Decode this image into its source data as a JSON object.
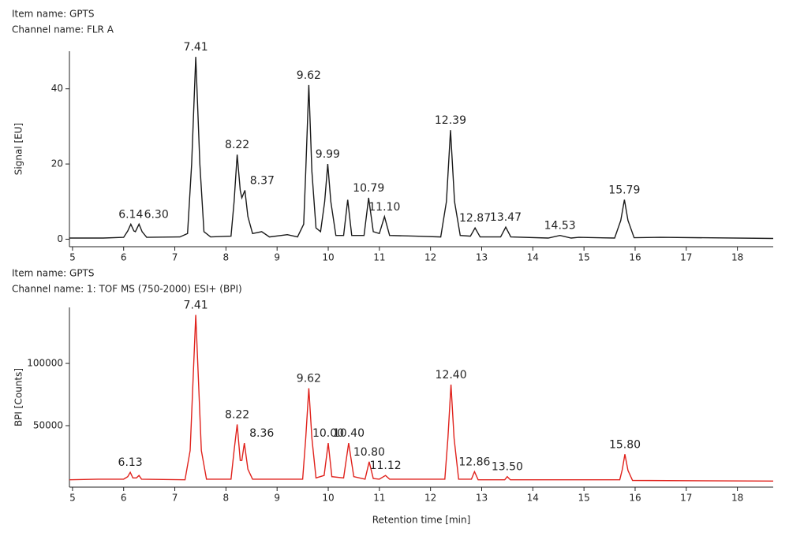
{
  "chart_data": [
    {
      "type": "line",
      "header": [
        "Item name: GPTS",
        "Channel name: FLR A"
      ],
      "y_label": "Signal [EU]",
      "xlim": [
        4.94,
        18.7
      ],
      "ylim": [
        -2,
        50
      ],
      "xticks": [
        5,
        6,
        7,
        8,
        9,
        10,
        11,
        12,
        13,
        14,
        15,
        16,
        17,
        18
      ],
      "yticks": [
        0,
        20,
        40
      ],
      "x": [
        4.94,
        5.6,
        6.0,
        6.08,
        6.14,
        6.2,
        6.23,
        6.3,
        6.36,
        6.45,
        7.1,
        7.25,
        7.33,
        7.41,
        7.49,
        7.57,
        7.7,
        8.1,
        8.16,
        8.22,
        8.28,
        8.31,
        8.37,
        8.43,
        8.52,
        8.7,
        8.85,
        9.2,
        9.4,
        9.52,
        9.56,
        9.62,
        9.68,
        9.76,
        9.85,
        9.93,
        9.99,
        10.05,
        10.15,
        10.3,
        10.38,
        10.46,
        10.7,
        10.79,
        10.88,
        11.0,
        11.1,
        11.2,
        11.7,
        12.2,
        12.31,
        12.39,
        12.47,
        12.58,
        12.78,
        12.87,
        12.97,
        13.37,
        13.47,
        13.57,
        14.3,
        14.53,
        14.75,
        14.9,
        15.6,
        15.72,
        15.79,
        15.86,
        15.98,
        16.5,
        18.7
      ],
      "series": [
        {
          "color": "#1a1a1a",
          "values": [
            0.3,
            0.3,
            0.5,
            2.2,
            4,
            2.2,
            2,
            4,
            2,
            0.5,
            0.6,
            1.5,
            20,
            48.5,
            20,
            2,
            0.6,
            0.8,
            10,
            22.5,
            13,
            11,
            13,
            6,
            1.5,
            2,
            0.6,
            1.2,
            0.6,
            4,
            18,
            41,
            18,
            3,
            2,
            10,
            20,
            10,
            1,
            1,
            10.5,
            1,
            1,
            11,
            2,
            1.5,
            6,
            1,
            0.8,
            0.6,
            10,
            29,
            10,
            1,
            0.8,
            3,
            0.6,
            0.6,
            3.2,
            0.6,
            0.3,
            1,
            0.3,
            0.5,
            0.3,
            5,
            10.5,
            5,
            0.4,
            0.5,
            0.2
          ]
        }
      ],
      "annotations": [
        {
          "x": 6.14,
          "label": "6.14"
        },
        {
          "x": 6.3,
          "label": "6.30"
        },
        {
          "x": 7.41,
          "label": "7.41"
        },
        {
          "x": 8.22,
          "label": "8.22"
        },
        {
          "x": 8.37,
          "label": "8.37"
        },
        {
          "x": 9.62,
          "label": "9.62"
        },
        {
          "x": 9.99,
          "label": "9.99"
        },
        {
          "x": 10.79,
          "label": "10.79"
        },
        {
          "x": 11.1,
          "label": "11.10"
        },
        {
          "x": 12.39,
          "label": "12.39"
        },
        {
          "x": 12.87,
          "label": "12.87"
        },
        {
          "x": 13.47,
          "label": "13.47"
        },
        {
          "x": 14.53,
          "label": "14.53"
        },
        {
          "x": 15.79,
          "label": "15.79"
        }
      ]
    },
    {
      "type": "line",
      "header": [
        "Item name: GPTS",
        "Channel name: 1: TOF MS (750-2000) ESI+ (BPI)"
      ],
      "y_label": "BPI [Counts]",
      "x_label": "Retention time [min]",
      "xlim": [
        4.94,
        18.7
      ],
      "ylim": [
        600,
        145000
      ],
      "xticks": [
        5,
        6,
        7,
        8,
        9,
        10,
        11,
        12,
        13,
        14,
        15,
        16,
        17,
        18
      ],
      "yticks": [
        50000,
        100000
      ],
      "x": [
        4.94,
        5.5,
        6.0,
        6.08,
        6.13,
        6.18,
        6.25,
        6.3,
        6.35,
        7.2,
        7.3,
        7.41,
        7.52,
        7.62,
        8.1,
        8.16,
        8.22,
        8.28,
        8.31,
        8.36,
        8.43,
        8.52,
        9.5,
        9.56,
        9.62,
        9.68,
        9.76,
        9.92,
        10.0,
        10.07,
        10.3,
        10.4,
        10.5,
        10.72,
        10.8,
        10.88,
        11.0,
        11.12,
        11.2,
        12.28,
        12.34,
        12.4,
        12.46,
        12.55,
        12.8,
        12.86,
        12.93,
        13.45,
        13.5,
        13.56,
        15.7,
        15.75,
        15.8,
        15.86,
        15.95,
        18.7
      ],
      "series": [
        {
          "color": "#e0221c",
          "values": [
            6500,
            7000,
            7000,
            9000,
            12500,
            8000,
            8000,
            10000,
            7000,
            6500,
            30000,
            139000,
            30000,
            7000,
            7000,
            30000,
            51000,
            22000,
            22000,
            36000,
            15000,
            7000,
            7000,
            40000,
            80000,
            40000,
            8000,
            10000,
            36000,
            9000,
            8000,
            36000,
            9000,
            7000,
            21000,
            7500,
            7000,
            10000,
            7000,
            7000,
            40000,
            83000,
            40000,
            7000,
            7000,
            13000,
            6500,
            6500,
            9000,
            6500,
            6500,
            15000,
            27000,
            14000,
            6000,
            5500
          ]
        }
      ],
      "annotations": [
        {
          "x": 6.13,
          "label": "6.13"
        },
        {
          "x": 7.41,
          "label": "7.41"
        },
        {
          "x": 8.22,
          "label": "8.22"
        },
        {
          "x": 8.36,
          "label": "8.36"
        },
        {
          "x": 9.62,
          "label": "9.62"
        },
        {
          "x": 10,
          "label": "10.00"
        },
        {
          "x": 10.4,
          "label": "10.40"
        },
        {
          "x": 10.8,
          "label": "10.80"
        },
        {
          "x": 11.12,
          "label": "11.12"
        },
        {
          "x": 12.4,
          "label": "12.40"
        },
        {
          "x": 12.86,
          "label": "12.86"
        },
        {
          "x": 13.5,
          "label": "13.50"
        },
        {
          "x": 15.8,
          "label": "15.80"
        }
      ]
    }
  ]
}
